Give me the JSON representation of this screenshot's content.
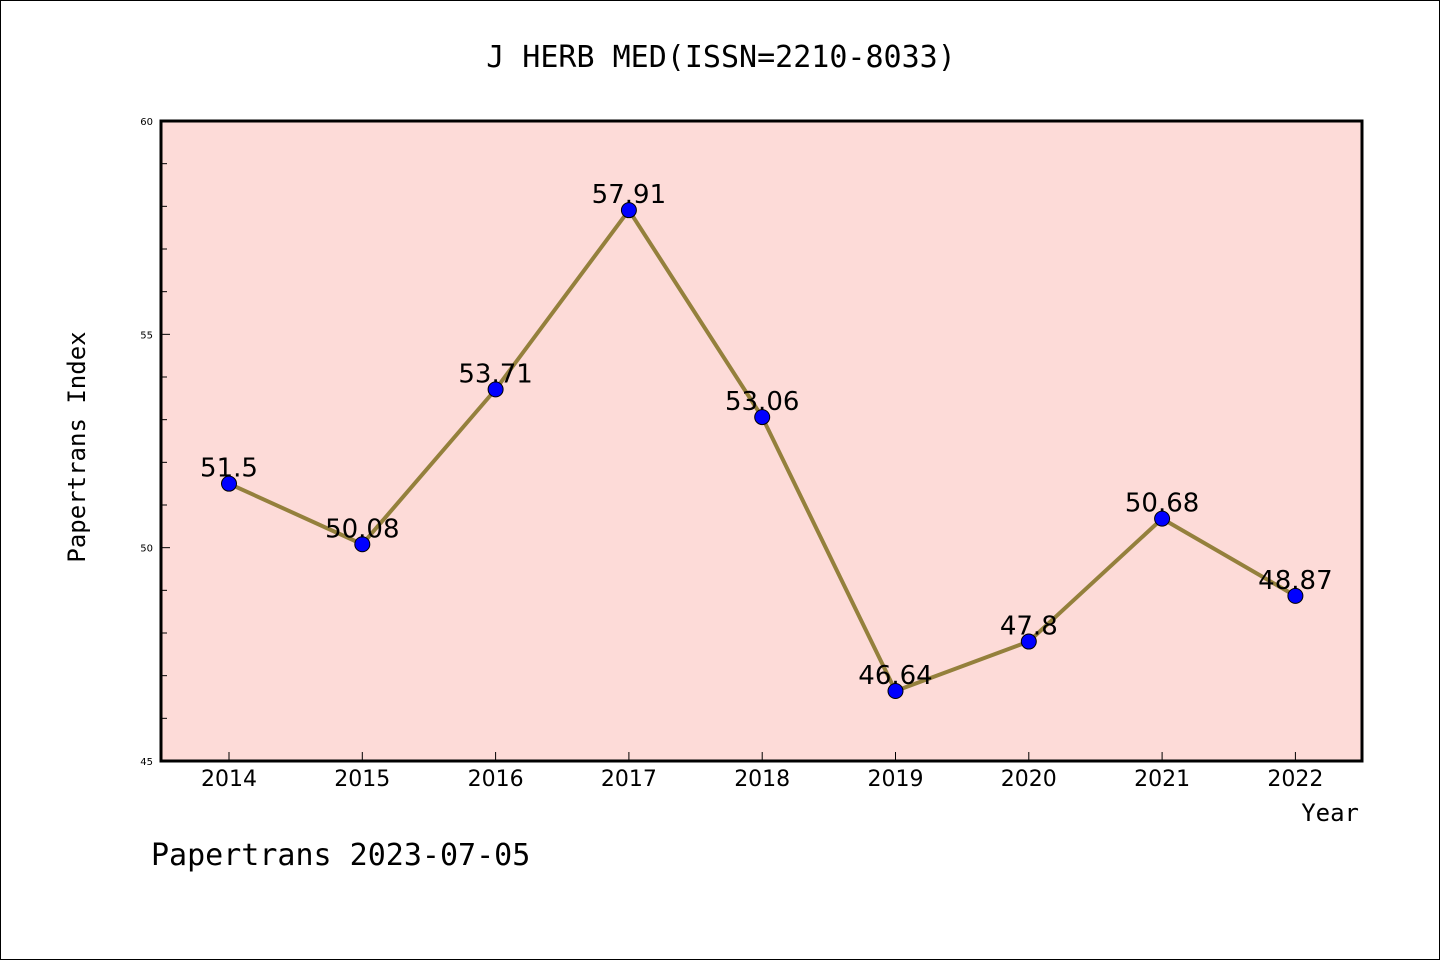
{
  "chart_data": {
    "type": "line",
    "title": "J HERB MED(ISSN=2210-8033)",
    "xlabel": "Year",
    "ylabel": "Papertrans Index",
    "footer": "Papertrans 2023-07-05",
    "categories": [
      "2014",
      "2015",
      "2016",
      "2017",
      "2018",
      "2019",
      "2020",
      "2021",
      "2022"
    ],
    "values": [
      51.5,
      50.08,
      53.71,
      57.91,
      53.06,
      46.64,
      47.8,
      50.68,
      48.87
    ],
    "data_labels": [
      "51.5",
      "50.08",
      "53.71",
      "57.91",
      "53.06",
      "46.64",
      "47.8",
      "50.68",
      "48.87"
    ],
    "ylim": [
      45,
      60
    ],
    "yticks": [
      "45",
      "50",
      "55",
      "60"
    ],
    "grid": false,
    "colors": {
      "plot_background": "#fddbd8",
      "line": "#94803c",
      "marker": "#0000ff"
    }
  }
}
